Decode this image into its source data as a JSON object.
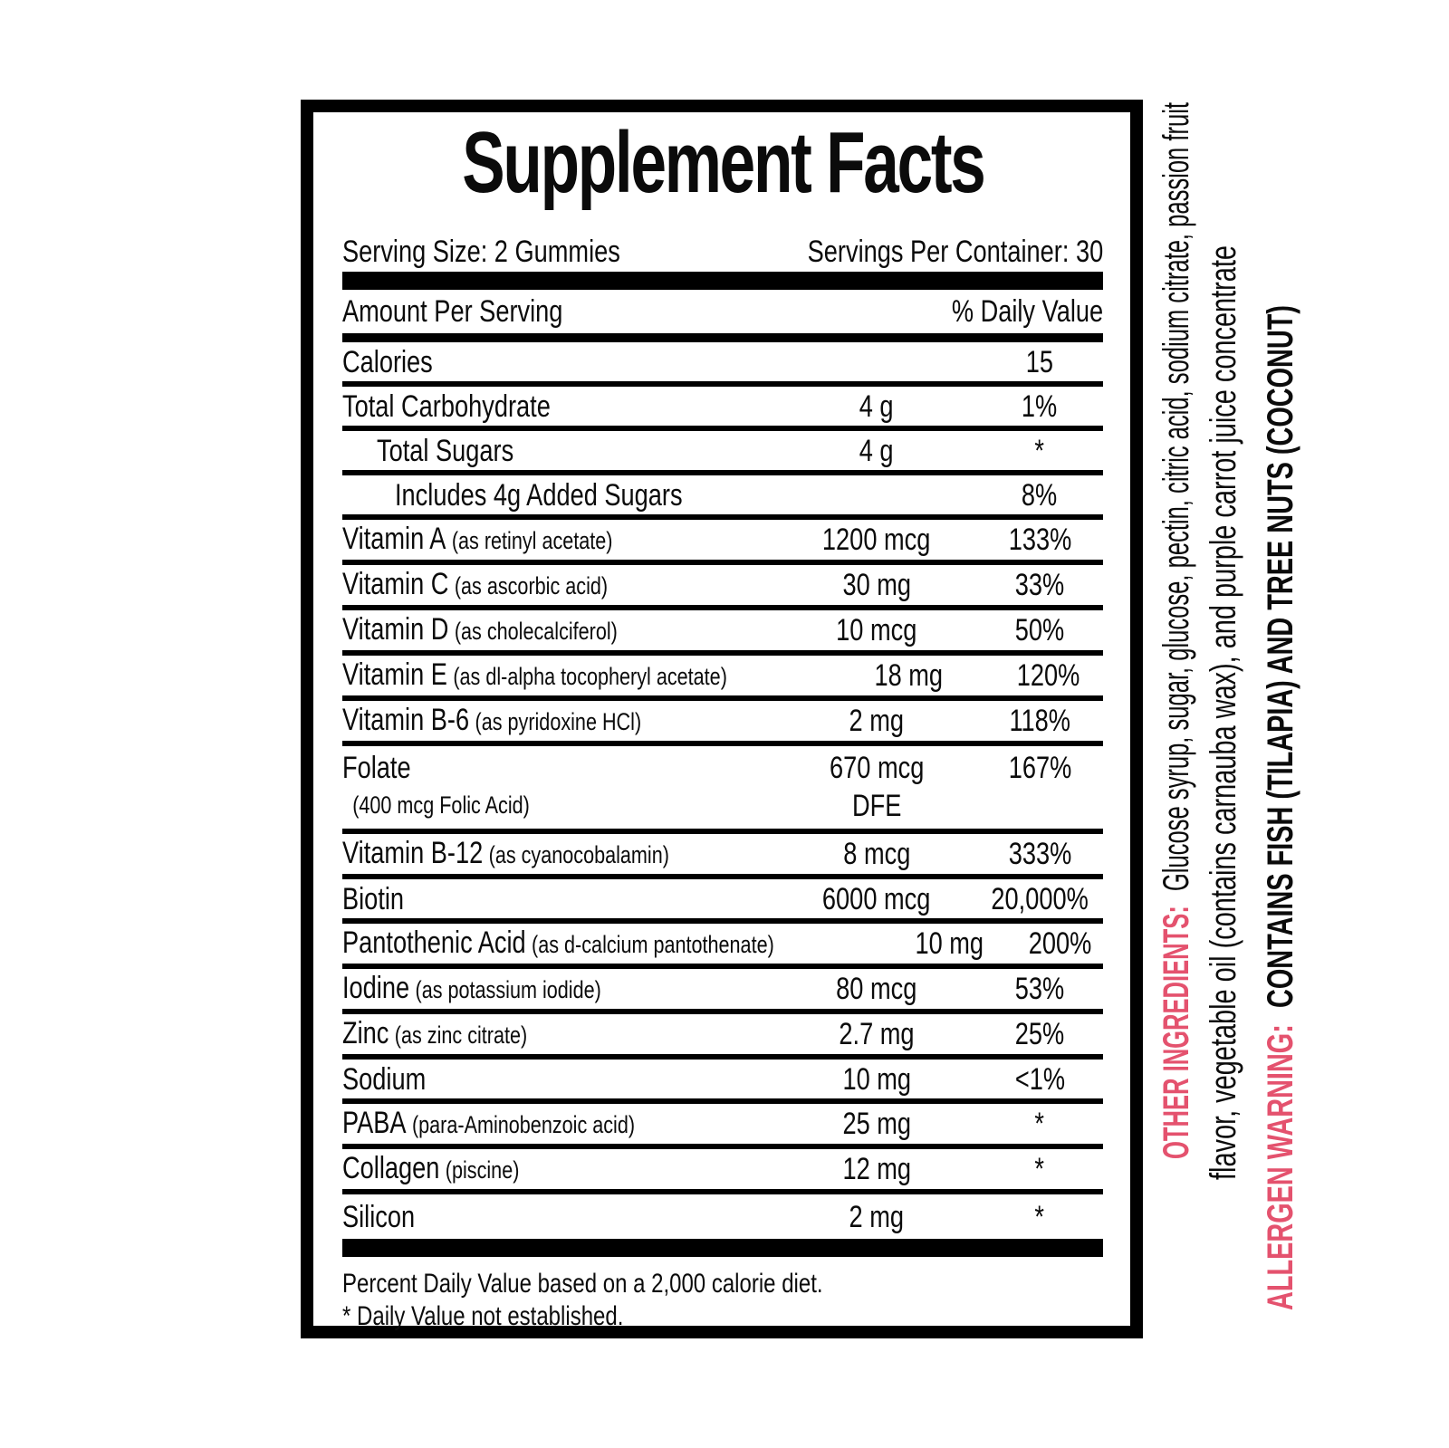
{
  "accent_color": "#e4526e",
  "panel": {
    "title": "Supplement Facts",
    "serving_size": "Serving Size: 2 Gummies",
    "servings_per_container": "Servings Per Container: 30",
    "col_amount_header": "Amount Per Serving",
    "col_dv_header": "% Daily Value",
    "rows": [
      {
        "name": "Calories",
        "amt": "",
        "dv": "15"
      },
      {
        "name": "Total Carbohydrate",
        "amt": "4 g",
        "dv": "1%"
      },
      {
        "name": "Total Sugars",
        "indent": 1,
        "amt": "4 g",
        "dv": "*"
      },
      {
        "name": "Includes 4g Added Sugars",
        "indent": 2,
        "amt": "",
        "dv": "8%"
      },
      {
        "name": "Vitamin A",
        "paren": "(as retinyl acetate)",
        "amt": "1200 mcg",
        "dv": "133%"
      },
      {
        "name": "Vitamin C",
        "paren": "(as ascorbic acid)",
        "amt": "30 mg",
        "dv": "33%"
      },
      {
        "name": "Vitamin D",
        "paren": "(as cholecalciferol)",
        "amt": "10 mcg",
        "dv": "50%"
      },
      {
        "name": "Vitamin E",
        "paren": "(as dl-alpha tocopheryl acetate)",
        "amt": "18 mg",
        "dv": "120%"
      },
      {
        "name": "Vitamin B-6",
        "paren": "(as pyridoxine HCl)",
        "amt": "2 mg",
        "dv": "118%"
      },
      {
        "name": "Folate",
        "name2": "(400 mcg Folic Acid)",
        "amt": "670 mcg",
        "amt2": "DFE",
        "dv": "167%"
      },
      {
        "name": "Vitamin B-12",
        "paren": "(as cyanocobalamin)",
        "amt": "8 mcg",
        "dv": "333%"
      },
      {
        "name": "Biotin",
        "amt": "6000 mcg",
        "dv": "20,000%"
      },
      {
        "name": "Pantothenic Acid",
        "paren": "(as d-calcium pantothenate)",
        "amt": "10 mg",
        "dv": "200%"
      },
      {
        "name": "Iodine",
        "paren": "(as potassium iodide)",
        "amt": "80 mcg",
        "dv": "53%"
      },
      {
        "name": "Zinc",
        "paren": "(as zinc citrate)",
        "amt": "2.7 mg",
        "dv": "25%"
      },
      {
        "name": "Sodium",
        "amt": "10 mg",
        "dv": "<1%"
      },
      {
        "name": "PABA",
        "paren": "(para-Aminobenzoic acid)",
        "amt": "25 mg",
        "dv": "*"
      },
      {
        "name": "Collagen",
        "paren": "(piscine)",
        "amt": "12 mg",
        "dv": "*"
      },
      {
        "name": "Silicon",
        "amt": "2 mg",
        "dv": "*"
      }
    ],
    "footnote_line1": "Percent Daily Value based on a 2,000 calorie diet.",
    "footnote_line2": "* Daily Value not established."
  },
  "side_text": {
    "other_ingredients_label": "OTHER INGREDIENTS:",
    "other_ingredients_line1": "Glucose syrup, sugar, glucose, pectin, citric acid, sodium citrate, passion fruit",
    "other_ingredients_line2": "flavor, vegetable oil (contains carnauba wax), and purple carrot juice concentrate",
    "allergen_label": "ALLERGEN WARNING:",
    "allergen_text": "CONTAINS FISH (TILAPIA) AND TREE NUTS (COCONUT)"
  }
}
